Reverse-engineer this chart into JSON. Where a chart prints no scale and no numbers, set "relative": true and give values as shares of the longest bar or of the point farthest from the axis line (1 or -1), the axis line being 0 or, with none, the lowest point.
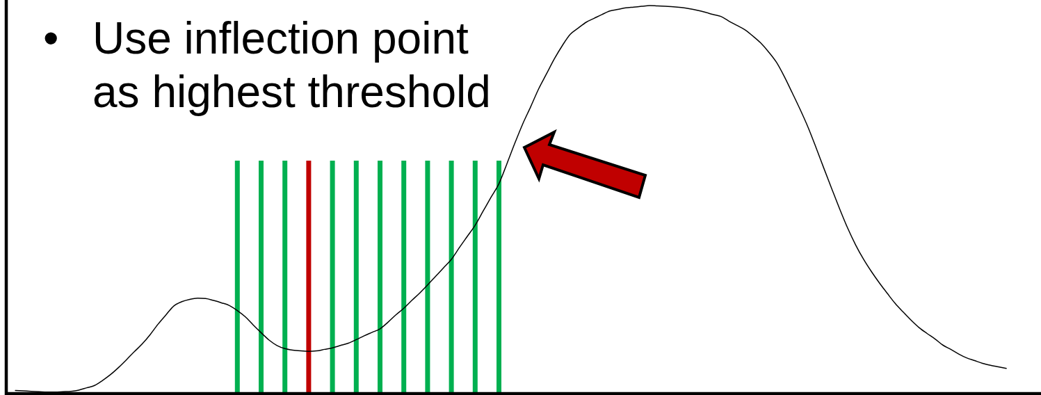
{
  "chart_data": {
    "type": "line",
    "relative": true,
    "categories": [
      null,
      null,
      null,
      null,
      null,
      null,
      null,
      null,
      null,
      null,
      null,
      null,
      null,
      null,
      null,
      null,
      null,
      null,
      null,
      null,
      null,
      null,
      null,
      null,
      null,
      null,
      null,
      null,
      null,
      null,
      null,
      null,
      null,
      null,
      null,
      null,
      null,
      null,
      null,
      null,
      null,
      null,
      null,
      null,
      null,
      null,
      null,
      null,
      null,
      null,
      null,
      null,
      null,
      null,
      null,
      null,
      null,
      null,
      null,
      null,
      null,
      null,
      null,
      null,
      null,
      null,
      null,
      null,
      null,
      null,
      null,
      null,
      null,
      null,
      null,
      null,
      null,
      null,
      null,
      null,
      null,
      null,
      null,
      null,
      null,
      null,
      null,
      null,
      null,
      null,
      null,
      null,
      null,
      null,
      null,
      null,
      null,
      null,
      null,
      null,
      null,
      null,
      null,
      null,
      null,
      null,
      null,
      null,
      null,
      null,
      null,
      null,
      null,
      null,
      null,
      null,
      null,
      null,
      null,
      null,
      null,
      null,
      null,
      null,
      null,
      null
    ],
    "series": [
      {
        "color": "#000000",
        "values": [
          0.008,
          0.007,
          0.006,
          0.005,
          0.004,
          0.004,
          0.005,
          0.006,
          0.009,
          0.015,
          0.021,
          0.034,
          0.049,
          0.067,
          0.087,
          0.108,
          0.128,
          0.152,
          0.179,
          0.203,
          0.226,
          0.237,
          0.243,
          0.246,
          0.245,
          0.24,
          0.234,
          0.227,
          0.214,
          0.198,
          0.177,
          0.157,
          0.138,
          0.124,
          0.116,
          0.112,
          0.11,
          0.109,
          0.11,
          0.114,
          0.118,
          0.124,
          0.13,
          0.139,
          0.149,
          0.158,
          0.167,
          0.184,
          0.203,
          0.22,
          0.24,
          0.259,
          0.28,
          0.302,
          0.324,
          0.346,
          0.376,
          0.405,
          0.434,
          0.47,
          0.506,
          0.541,
          0.592,
          0.645,
          0.695,
          0.739,
          0.785,
          0.824,
          0.863,
          0.897,
          0.926,
          0.942,
          0.957,
          0.967,
          0.977,
          0.986,
          0.99,
          0.994,
          0.996,
          0.998,
          1,
          0.999,
          0.998,
          0.997,
          0.995,
          0.992,
          0.988,
          0.983,
          0.977,
          0.972,
          0.96,
          0.949,
          0.938,
          0.922,
          0.904,
          0.881,
          0.854,
          0.817,
          0.775,
          0.732,
          0.686,
          0.634,
          0.58,
          0.527,
          0.475,
          0.426,
          0.383,
          0.346,
          0.314,
          0.285,
          0.258,
          0.232,
          0.21,
          0.189,
          0.17,
          0.155,
          0.141,
          0.125,
          0.114,
          0.102,
          0.092,
          0.085,
          0.078,
          0.073,
          0.069,
          0.065
        ]
      }
    ],
    "annotations": [
      "• Use inflection point\nas highest threshold"
    ]
  }
}
